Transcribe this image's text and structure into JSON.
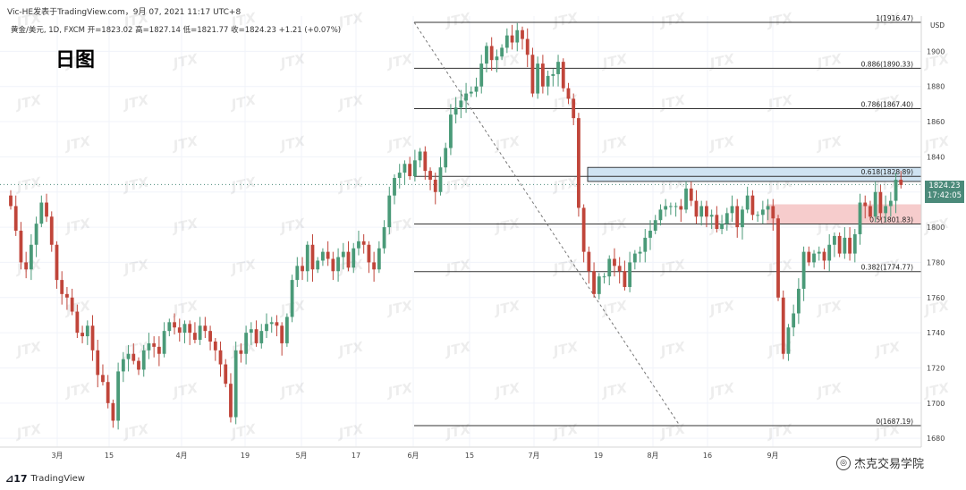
{
  "header": {
    "line1": "Vic-HE发表于TradingView.com，9月 07, 2021 11:17 UTC+8",
    "line2": "黄金/美元, 1D, FXCM  开=1823.02  高=1827.14  低=1821.77  收=1824.23  +1.21 (+0.07%)"
  },
  "annotation": "日图",
  "brand": {
    "name": "TradingView"
  },
  "credit": {
    "text": "杰克交易学院",
    "icon": "weibo-icon"
  },
  "watermark": "JTX",
  "currency_label": "USD",
  "price_label": {
    "price": "1824.23",
    "countdown": "17:42:05"
  },
  "colors": {
    "up": "#4a9a78",
    "down": "#c0453a",
    "fib_line": "#333333",
    "resistance_zone": "#cfe3f2",
    "support_zone": "#f6cccc"
  },
  "chart_data": {
    "type": "candlestick",
    "symbol": "黄金/美元",
    "timeframe": "1D",
    "y_axis": {
      "ticks": [
        1680,
        1700,
        1720,
        1740,
        1760,
        1780,
        1800,
        1820,
        1840,
        1860,
        1880,
        1900
      ],
      "range": [
        1675,
        1925
      ]
    },
    "x_axis": {
      "ticks": [
        "3月",
        "15",
        "4月",
        "19",
        "5月",
        "17",
        "6月",
        "15",
        "7月",
        "19",
        "8月",
        "16",
        "9月"
      ]
    },
    "fibonacci": [
      {
        "ratio": "1",
        "price": 1916.47,
        "label": "1(1916.47)"
      },
      {
        "ratio": "0.886",
        "price": 1890.33,
        "label": "0.886(1890.33)"
      },
      {
        "ratio": "0.786",
        "price": 1867.4,
        "label": "0.786(1867.40)"
      },
      {
        "ratio": "0.618",
        "price": 1828.89,
        "label": "0.618(1828.89)"
      },
      {
        "ratio": "0.5",
        "price": 1801.83,
        "label": "0.5(1801.83)"
      },
      {
        "ratio": "0.382",
        "price": 1774.77,
        "label": "0.382(1774.77)"
      },
      {
        "ratio": "0",
        "price": 1687.19,
        "label": "0(1687.19)"
      }
    ],
    "resistance_zone": [
      1826,
      1834
    ],
    "support_zone": [
      1801.8,
      1813
    ],
    "last_close": 1824.23,
    "closes": [
      1812,
      1798,
      1780,
      1776,
      1790,
      1802,
      1814,
      1806,
      1790,
      1770,
      1762,
      1760,
      1752,
      1740,
      1738,
      1744,
      1730,
      1716,
      1712,
      1700,
      1690,
      1718,
      1725,
      1728,
      1724,
      1719,
      1730,
      1734,
      1732,
      1728,
      1741,
      1746,
      1743,
      1740,
      1745,
      1740,
      1736,
      1744,
      1741,
      1735,
      1730,
      1722,
      1711,
      1692,
      1730,
      1728,
      1740,
      1742,
      1734,
      1741,
      1745,
      1746,
      1744,
      1734,
      1749,
      1770,
      1778,
      1775,
      1790,
      1776,
      1781,
      1786,
      1782,
      1775,
      1783,
      1786,
      1777,
      1788,
      1792,
      1790,
      1780,
      1776,
      1788,
      1800,
      1818,
      1828,
      1831,
      1836,
      1829,
      1838,
      1843,
      1832,
      1827,
      1820,
      1834,
      1845,
      1864,
      1868,
      1872,
      1876,
      1877,
      1880,
      1893,
      1903,
      1895,
      1897,
      1902,
      1909,
      1905,
      1912,
      1907,
      1898,
      1876,
      1893,
      1880,
      1886,
      1887,
      1894,
      1879,
      1873,
      1862,
      1811,
      1786,
      1775,
      1762,
      1772,
      1772,
      1782,
      1778,
      1775,
      1766,
      1780,
      1785,
      1786,
      1794,
      1798,
      1804,
      1810,
      1812,
      1812,
      1812,
      1810,
      1822,
      1815,
      1806,
      1812,
      1806,
      1807,
      1799,
      1802,
      1808,
      1812,
      1800,
      1810,
      1818,
      1807,
      1807,
      1810,
      1812,
      1805,
      1760,
      1728,
      1743,
      1751,
      1765,
      1786,
      1780,
      1785,
      1786,
      1781,
      1790,
      1795,
      1785,
      1794,
      1785,
      1796,
      1814,
      1812,
      1806,
      1820,
      1808,
      1812,
      1815,
      1827,
      1824
    ]
  }
}
